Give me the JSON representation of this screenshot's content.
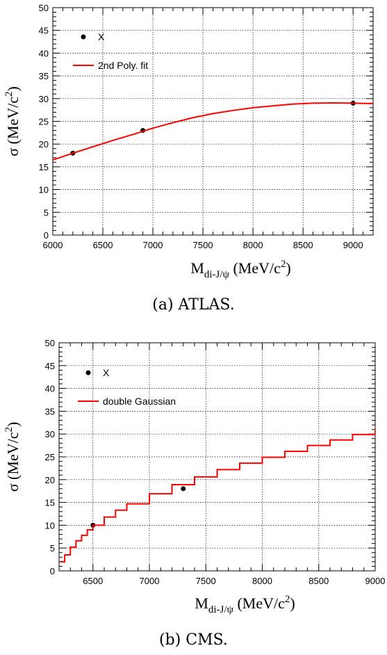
{
  "chart_data": [
    {
      "type": "scatter",
      "caption": "(a) ATLAS.",
      "xlabel_main": "M",
      "xlabel_sub": "di-J/ψ",
      "xlabel_unit": " (MeV/c",
      "xlabel_sup": "2",
      "xlabel_close": ")",
      "ylabel_main": "σ (MeV/c",
      "ylabel_sup": "2",
      "ylabel_close": ")",
      "xlim": [
        6000,
        9200
      ],
      "ylim": [
        0,
        50
      ],
      "xticks": [
        6000,
        6500,
        7000,
        7500,
        8000,
        8500,
        9000
      ],
      "yticks": [
        0,
        5,
        10,
        15,
        20,
        25,
        30,
        35,
        40,
        45,
        50
      ],
      "grid": true,
      "legend_placement": "top-left",
      "series": [
        {
          "name": "X",
          "kind": "points",
          "color": "#000000",
          "x": [
            6200,
            6900,
            9000
          ],
          "y": [
            18,
            23,
            29
          ]
        },
        {
          "name": "2nd Poly. fit",
          "kind": "curve",
          "color": "#ff0000",
          "x": [
            6000,
            6200,
            6400,
            6600,
            6800,
            7000,
            7200,
            7400,
            7600,
            7800,
            8000,
            8200,
            8400,
            8600,
            8800,
            9000,
            9200
          ],
          "y": [
            16.5,
            18.0,
            19.4,
            20.8,
            22.1,
            23.5,
            24.7,
            25.8,
            26.7,
            27.4,
            28.0,
            28.4,
            28.8,
            29.0,
            29.05,
            29.0,
            28.9
          ]
        }
      ]
    },
    {
      "type": "scatter",
      "caption": "(b) CMS.",
      "xlabel_main": "M",
      "xlabel_sub": "di-J/ψ",
      "xlabel_unit": " (MeV/c",
      "xlabel_sup": "2",
      "xlabel_close": ")",
      "ylabel_main": "σ (MeV/c",
      "ylabel_sup": "2",
      "ylabel_close": ")",
      "xlim": [
        6200,
        9000
      ],
      "ylim": [
        0,
        50
      ],
      "xticks": [
        6500,
        7000,
        7500,
        8000,
        8500,
        9000
      ],
      "yticks": [
        0,
        5,
        10,
        15,
        20,
        25,
        30,
        35,
        40,
        45,
        50
      ],
      "grid": true,
      "legend_placement": "top-left",
      "series": [
        {
          "name": "X",
          "kind": "points",
          "color": "#000000",
          "x": [
            6500,
            7300
          ],
          "y": [
            10,
            18
          ]
        },
        {
          "name": "double Gaussian",
          "kind": "curve",
          "color": "#ff0000",
          "x": [
            6210,
            6250,
            6300,
            6350,
            6400,
            6450,
            6500,
            6600,
            6700,
            6800,
            7000,
            7200,
            7400,
            7600,
            7800,
            8000,
            8200,
            8400,
            8600,
            8800,
            9000
          ],
          "y": [
            2.0,
            3.5,
            5.2,
            6.6,
            7.8,
            9.0,
            10.0,
            11.8,
            13.3,
            14.7,
            16.9,
            18.9,
            20.6,
            22.2,
            23.6,
            24.9,
            26.2,
            27.5,
            28.7,
            29.9,
            31.1
          ]
        }
      ]
    }
  ]
}
